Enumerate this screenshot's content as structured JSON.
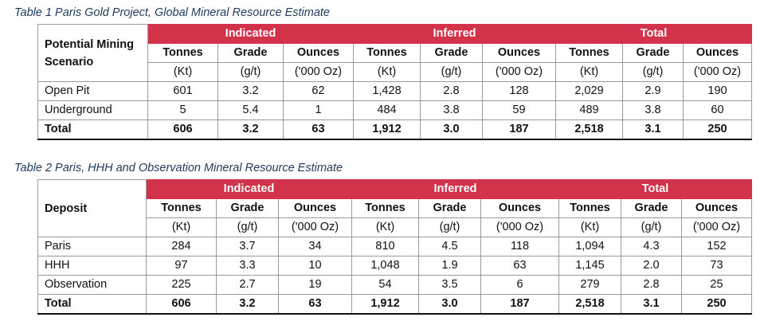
{
  "table1": {
    "caption": "Table 1 Paris Gold Project, Global Mineral Resource Estimate",
    "row_header": "Potential Mining Scenario",
    "groups": [
      "Indicated",
      "Inferred",
      "Total"
    ],
    "columns": [
      "Tonnes",
      "Grade",
      "Ounces",
      "Tonnes",
      "Grade",
      "Ounces",
      "Tonnes",
      "Grade",
      "Ounces"
    ],
    "units": [
      "(Kt)",
      "(g/t)",
      "('000 Oz)",
      "(Kt)",
      "(g/t)",
      "('000 Oz)",
      "(Kt)",
      "(g/t)",
      "('000 Oz)"
    ],
    "rows": [
      {
        "name": "Open Pit",
        "values": [
          "601",
          "3.2",
          "62",
          "1,428",
          "2.8",
          "128",
          "2,029",
          "2.9",
          "190"
        ]
      },
      {
        "name": "Underground",
        "values": [
          "5",
          "5.4",
          "1",
          "484",
          "3.8",
          "59",
          "489",
          "3.8",
          "60"
        ]
      },
      {
        "name": "Total",
        "values": [
          "606",
          "3.2",
          "63",
          "1,912",
          "3.0",
          "187",
          "2,518",
          "3.1",
          "250"
        ]
      }
    ]
  },
  "table2": {
    "caption": "Table 2 Paris, HHH and Observation Mineral Resource Estimate",
    "row_header": "Deposit",
    "groups": [
      "Indicated",
      "Inferred",
      "Total"
    ],
    "columns": [
      "Tonnes",
      "Grade",
      "Ounces",
      "Tonnes",
      "Grade",
      "Ounces",
      "Tonnes",
      "Grade",
      "Ounces"
    ],
    "units": [
      "(Kt)",
      "(g/t)",
      "('000 Oz)",
      "(Kt)",
      "(g/t)",
      "('000 Oz)",
      "(Kt)",
      "(g/t)",
      "('000 Oz)"
    ],
    "rows": [
      {
        "name": "Paris",
        "values": [
          "284",
          "3.7",
          "34",
          "810",
          "4.5",
          "118",
          "1,094",
          "4.3",
          "152"
        ]
      },
      {
        "name": "HHH",
        "values": [
          "97",
          "3.3",
          "10",
          "1,048",
          "1.9",
          "63",
          "1,145",
          "2.0",
          "73"
        ]
      },
      {
        "name": "Observation",
        "values": [
          "225",
          "2.7",
          "19",
          "54",
          "3.5",
          "6",
          "279",
          "2.8",
          "25"
        ]
      },
      {
        "name": "Total",
        "values": [
          "606",
          "3.2",
          "63",
          "1,912",
          "3.0",
          "187",
          "2,518",
          "3.1",
          "250"
        ]
      }
    ]
  },
  "colors": {
    "header_red": "#d3334a",
    "caption_blue": "#1f3a5f"
  }
}
